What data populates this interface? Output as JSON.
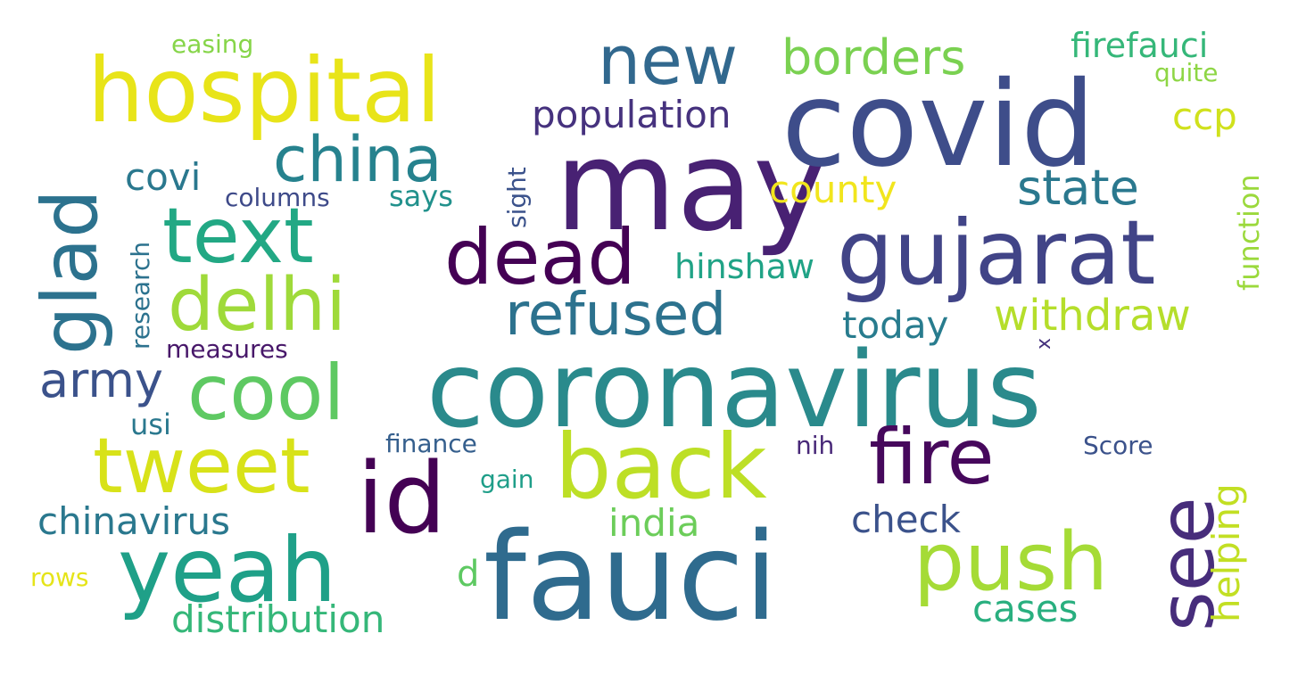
{
  "words": [
    {
      "text": "coronavirus",
      "color": "#2a8a8c"
    },
    {
      "text": "may",
      "color": "#482173"
    },
    {
      "text": "covid",
      "color": "#3e4d8a"
    },
    {
      "text": "fauci",
      "color": "#2f6b8e"
    },
    {
      "text": "hospital",
      "color": "#e8e419"
    },
    {
      "text": "gujarat",
      "color": "#414487"
    },
    {
      "text": "text",
      "color": "#22a884"
    },
    {
      "text": "dead",
      "color": "#440154"
    },
    {
      "text": "new",
      "color": "#31688e"
    },
    {
      "text": "delhi",
      "color": "#9fda3a"
    },
    {
      "text": "cool",
      "color": "#5ec962"
    },
    {
      "text": "tweet",
      "color": "#d8e219"
    },
    {
      "text": "id",
      "color": "#440154"
    },
    {
      "text": "back",
      "color": "#bddf26"
    },
    {
      "text": "fire",
      "color": "#46085c"
    },
    {
      "text": "yeah",
      "color": "#1fa088"
    },
    {
      "text": "push",
      "color": "#a5db36"
    },
    {
      "text": "see",
      "color": "#472d7b"
    },
    {
      "text": "glad",
      "color": "#2c728e"
    },
    {
      "text": "china",
      "color": "#26828e"
    },
    {
      "text": "refused",
      "color": "#2c728e"
    },
    {
      "text": "borders",
      "color": "#7ad151"
    },
    {
      "text": "population",
      "color": "#46327e"
    },
    {
      "text": "firefauci",
      "color": "#35b779"
    },
    {
      "text": "state",
      "color": "#2a788e"
    },
    {
      "text": "withdraw",
      "color": "#b5de2b"
    },
    {
      "text": "county",
      "color": "#f1e51d"
    },
    {
      "text": "ccp",
      "color": "#d0e11c"
    },
    {
      "text": "army",
      "color": "#3b528b"
    },
    {
      "text": "covi",
      "color": "#2a788e"
    },
    {
      "text": "hinshaw",
      "color": "#20a386"
    },
    {
      "text": "today",
      "color": "#287c8e"
    },
    {
      "text": "chinavirus",
      "color": "#2a788e"
    },
    {
      "text": "distribution",
      "color": "#35b779"
    },
    {
      "text": "india",
      "color": "#6ccd5a"
    },
    {
      "text": "check",
      "color": "#3b528b"
    },
    {
      "text": "cases",
      "color": "#29af7f"
    },
    {
      "text": "helping",
      "color": "#c2df23"
    },
    {
      "text": "function",
      "color": "#9bd93c"
    },
    {
      "text": "says",
      "color": "#21918c"
    },
    {
      "text": "sight",
      "color": "#3b528b"
    },
    {
      "text": "research",
      "color": "#2c728e"
    },
    {
      "text": "columns",
      "color": "#3e4a89"
    },
    {
      "text": "measures",
      "color": "#48186a"
    },
    {
      "text": "easing",
      "color": "#86d549"
    },
    {
      "text": "quite",
      "color": "#8ed645"
    },
    {
      "text": "usi",
      "color": "#2a788e"
    },
    {
      "text": "finance",
      "color": "#355f8d"
    },
    {
      "text": "gain",
      "color": "#1f9e89"
    },
    {
      "text": "nih",
      "color": "#482878"
    },
    {
      "text": "Score",
      "color": "#3b528b"
    },
    {
      "text": "d",
      "color": "#5ec962"
    },
    {
      "text": "rows",
      "color": "#e5e419"
    },
    {
      "text": "x",
      "color": "#46337e"
    }
  ]
}
